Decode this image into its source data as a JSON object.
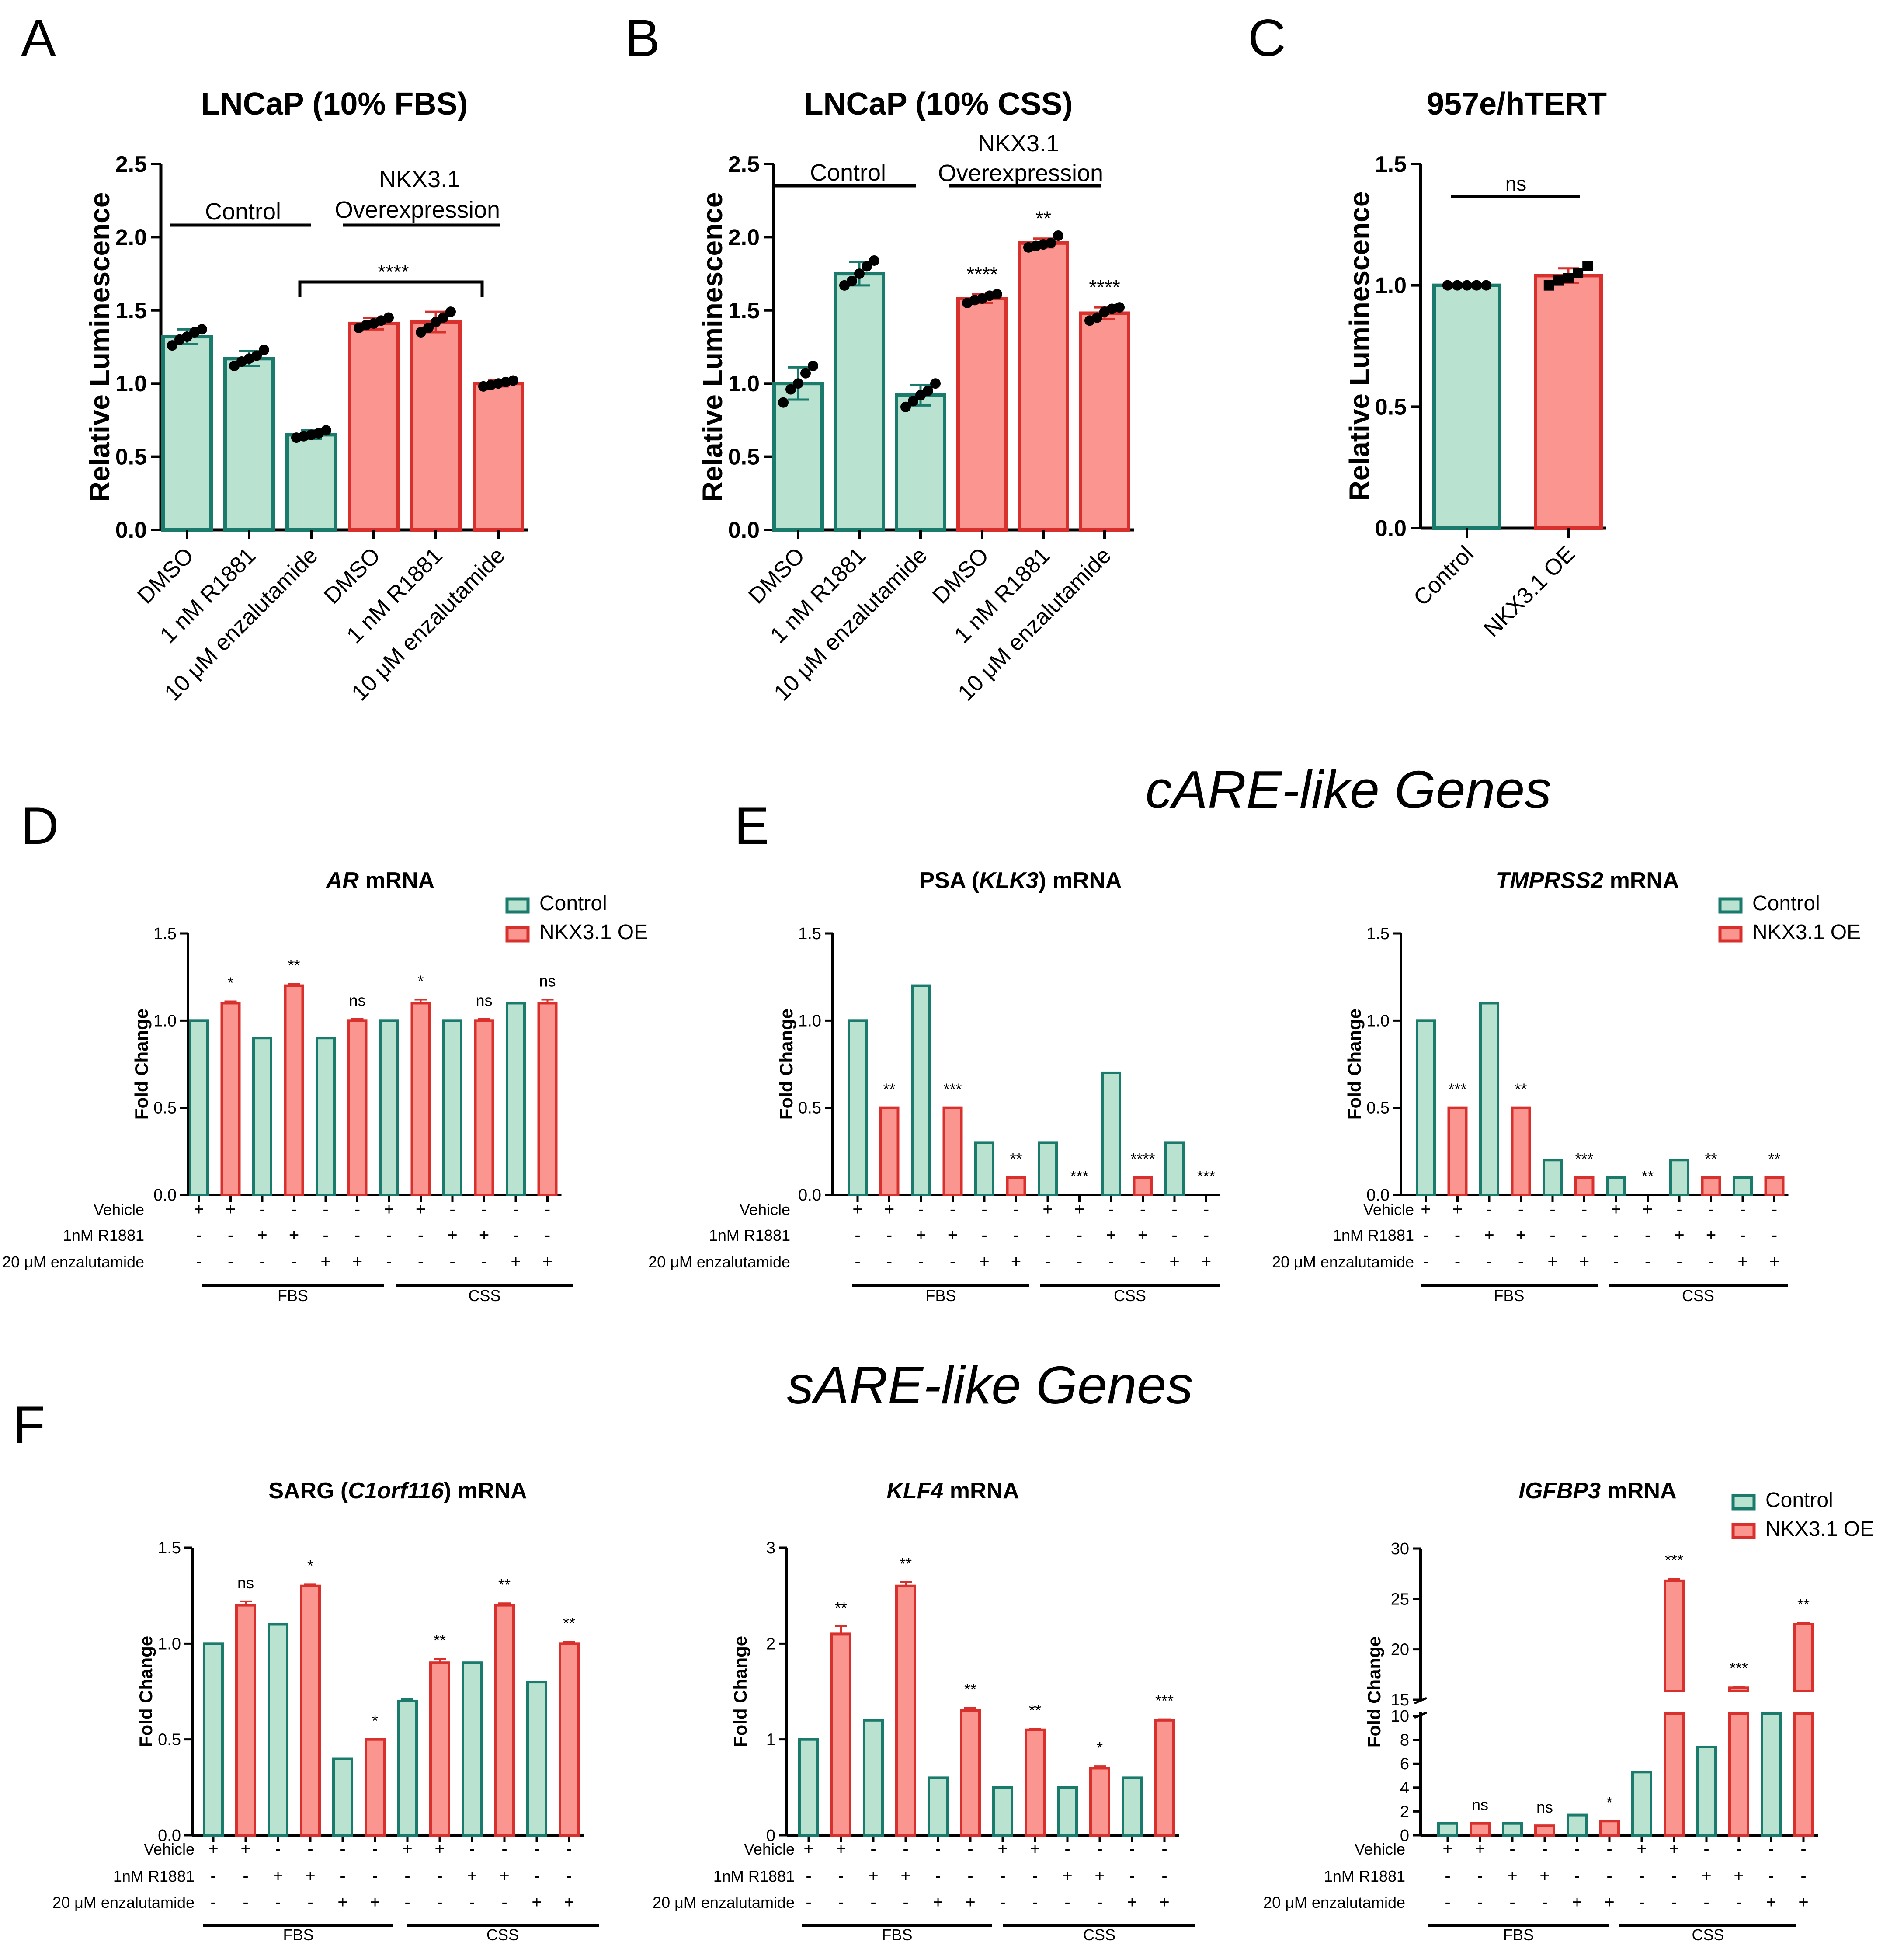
{
  "colors": {
    "control_fill": "#b9e3d0",
    "control_edge": "#1a7a6b",
    "nkx_fill": "#fa958f",
    "nkx_edge": "#d8302c"
  },
  "sections": {
    "care": "cARE-like Genes",
    "sare": "sARE-like Genes"
  },
  "legend": {
    "control": "Control",
    "nkx": "NKX3.1 OE"
  },
  "condition_rows": {
    "vehicle": "Vehicle",
    "r1881": "1nM R1881",
    "enza": "20 μM enzalutamide",
    "vehicle_marks": [
      "+",
      "+",
      "-",
      "-",
      "-",
      "-",
      "+",
      "+",
      "-",
      "-",
      "-",
      "-"
    ],
    "r1881_marks": [
      "-",
      "-",
      "+",
      "+",
      "-",
      "-",
      "-",
      "-",
      "+",
      "+",
      "-",
      "-"
    ],
    "enza_marks": [
      "-",
      "-",
      "-",
      "-",
      "+",
      "+",
      "-",
      "-",
      "-",
      "-",
      "+",
      "+"
    ],
    "group_fbs": "FBS",
    "group_css": "CSS"
  },
  "chart_data": [
    {
      "id": "A",
      "letter": "A",
      "type": "bar",
      "title": "LNCaP (10% FBS)",
      "ylabel": "Relative Luminescence",
      "ylim": [
        0,
        2.5
      ],
      "yticks": [
        "0.0",
        "0.5",
        "1.0",
        "1.5",
        "2.0",
        "2.5"
      ],
      "categories": [
        "DMSO",
        "1 nM R1881",
        "10 μM enzalutamide",
        "DMSO",
        "1 nM R1881",
        "10 μM enzalutamide"
      ],
      "groups": [
        "Control",
        "Control",
        "Control",
        "NKX3.1",
        "NKX3.1",
        "NKX3.1"
      ],
      "values": [
        1.32,
        1.17,
        0.65,
        1.41,
        1.42,
        1.0
      ],
      "errors": [
        0.05,
        0.05,
        0.03,
        0.04,
        0.07,
        0.02
      ],
      "points": [
        [
          1.26,
          1.3,
          1.32,
          1.35,
          1.37
        ],
        [
          1.12,
          1.15,
          1.17,
          1.19,
          1.23
        ],
        [
          0.63,
          0.64,
          0.65,
          0.66,
          0.68
        ],
        [
          1.38,
          1.4,
          1.41,
          1.43,
          1.45
        ],
        [
          1.35,
          1.38,
          1.42,
          1.45,
          1.49
        ],
        [
          0.98,
          0.99,
          1.0,
          1.01,
          1.02
        ]
      ],
      "group_labels": {
        "control": "Control",
        "nkx_line1": "NKX3.1",
        "nkx_line2": "Overexpression"
      },
      "bracket_label": "****",
      "bar_sigs": [
        "",
        "",
        "",
        "",
        "",
        ""
      ]
    },
    {
      "id": "B",
      "letter": "B",
      "type": "bar",
      "title": "LNCaP (10% CSS)",
      "ylabel": "Relative Luminescence",
      "ylim": [
        0,
        2.5
      ],
      "yticks": [
        "0.0",
        "0.5",
        "1.0",
        "1.5",
        "2.0",
        "2.5"
      ],
      "categories": [
        "DMSO",
        "1 nM R1881",
        "10 μM enzalutamide",
        "DMSO",
        "1 nM R1881",
        "10 μM enzalutamide"
      ],
      "groups": [
        "Control",
        "Control",
        "Control",
        "NKX3.1",
        "NKX3.1",
        "NKX3.1"
      ],
      "values": [
        1.0,
        1.75,
        0.92,
        1.58,
        1.96,
        1.48
      ],
      "errors": [
        0.11,
        0.08,
        0.07,
        0.03,
        0.03,
        0.04
      ],
      "points": [
        [
          0.87,
          0.96,
          1.0,
          1.07,
          1.12
        ],
        [
          1.67,
          1.7,
          1.75,
          1.8,
          1.84
        ],
        [
          0.84,
          0.88,
          0.92,
          0.95,
          1.0
        ],
        [
          1.55,
          1.57,
          1.58,
          1.6,
          1.61
        ],
        [
          1.93,
          1.94,
          1.95,
          1.96,
          2.01
        ],
        [
          1.43,
          1.45,
          1.49,
          1.51,
          1.52
        ]
      ],
      "group_labels": {
        "control": "Control",
        "nkx_line1": "NKX3.1",
        "nkx_line2": "Overexpression"
      },
      "bar_sigs": [
        "",
        "",
        "",
        "****",
        "**",
        "****"
      ]
    },
    {
      "id": "C",
      "letter": "C",
      "type": "bar",
      "title": "957e/hTERT",
      "ylabel": "Relative Luminescence",
      "ylim": [
        0,
        1.5
      ],
      "yticks": [
        "0.0",
        "0.5",
        "1.0",
        "1.5"
      ],
      "categories": [
        "Control",
        "NKX3.1 OE"
      ],
      "groups": [
        "Control",
        "NKX3.1"
      ],
      "values": [
        1.0,
        1.04
      ],
      "errors": [
        0.0,
        0.03
      ],
      "points": [
        [
          1.0,
          1.0,
          1.0,
          1.0,
          1.0
        ],
        [
          1.0,
          1.02,
          1.03,
          1.05,
          1.08
        ]
      ],
      "bracket_label": "ns"
    },
    {
      "id": "D",
      "letter": "D",
      "type": "bar",
      "title_parts": [
        [
          "AR",
          true
        ],
        [
          " mRNA",
          false
        ]
      ],
      "ylabel": "Fold Change",
      "ylim": [
        0,
        1.5
      ],
      "yticks": [
        "0.0",
        "0.5",
        "1.0",
        "1.5"
      ],
      "groups": [
        "Control",
        "NKX3.1",
        "Control",
        "NKX3.1",
        "Control",
        "NKX3.1",
        "Control",
        "NKX3.1",
        "Control",
        "NKX3.1",
        "Control",
        "NKX3.1"
      ],
      "values": [
        1.0,
        1.1,
        0.9,
        1.2,
        0.9,
        1.0,
        1.0,
        1.1,
        1.0,
        1.0,
        1.1,
        1.1
      ],
      "errors": [
        0.0,
        0.01,
        0.0,
        0.01,
        0.0,
        0.01,
        0.0,
        0.02,
        0.0,
        0.01,
        0.0,
        0.02
      ],
      "sigs": [
        "",
        "*",
        "",
        "**",
        "",
        "ns",
        "",
        "*",
        "",
        "ns",
        "",
        "ns"
      ]
    },
    {
      "id": "E1",
      "letter": "E",
      "type": "bar",
      "title_parts": [
        [
          "PSA (",
          false
        ],
        [
          "KLK3",
          true
        ],
        [
          ") mRNA",
          false
        ]
      ],
      "ylabel": "Fold Change",
      "ylim": [
        0,
        1.5
      ],
      "yticks": [
        "0.0",
        "0.5",
        "1.0",
        "1.5"
      ],
      "groups": [
        "Control",
        "NKX3.1",
        "Control",
        "NKX3.1",
        "Control",
        "NKX3.1",
        "Control",
        "NKX3.1",
        "Control",
        "NKX3.1",
        "Control",
        "NKX3.1"
      ],
      "values": [
        1.0,
        0.5,
        1.2,
        0.5,
        0.3,
        0.1,
        0.3,
        0.0,
        0.7,
        0.1,
        0.3,
        0.0
      ],
      "errors": [
        0.0,
        0.0,
        0.0,
        0.0,
        0.0,
        0.0,
        0.0,
        0.0,
        0.0,
        0.0,
        0.0,
        0.0
      ],
      "sigs": [
        "",
        "**",
        "",
        "***",
        "",
        "**",
        "",
        "***",
        "",
        "****",
        "",
        "***"
      ]
    },
    {
      "id": "E2",
      "letter": "",
      "type": "bar",
      "title_parts": [
        [
          "TMPRSS2",
          true
        ],
        [
          " mRNA",
          false
        ]
      ],
      "ylabel": "Fold Change",
      "ylim": [
        0,
        1.5
      ],
      "yticks": [
        "0.0",
        "0.5",
        "1.0",
        "1.5"
      ],
      "groups": [
        "Control",
        "NKX3.1",
        "Control",
        "NKX3.1",
        "Control",
        "NKX3.1",
        "Control",
        "NKX3.1",
        "Control",
        "NKX3.1",
        "Control",
        "NKX3.1"
      ],
      "values": [
        1.0,
        0.5,
        1.1,
        0.5,
        0.2,
        0.1,
        0.1,
        0.0,
        0.2,
        0.1,
        0.1,
        0.1
      ],
      "errors": [
        0.0,
        0.0,
        0.0,
        0.0,
        0.0,
        0.0,
        0.0,
        0.0,
        0.0,
        0.0,
        0.0,
        0.0
      ],
      "sigs": [
        "",
        "***",
        "",
        "**",
        "",
        "***",
        "",
        "**",
        "",
        "**",
        "",
        "**"
      ]
    },
    {
      "id": "F1",
      "letter": "F",
      "type": "bar",
      "title_parts": [
        [
          "SARG (",
          false
        ],
        [
          "C1orf116",
          true
        ],
        [
          ") mRNA",
          false
        ]
      ],
      "ylabel": "Fold Change",
      "ylim": [
        0,
        1.5
      ],
      "yticks": [
        "0.0",
        "0.5",
        "1.0",
        "1.5"
      ],
      "groups": [
        "Control",
        "NKX3.1",
        "Control",
        "NKX3.1",
        "Control",
        "NKX3.1",
        "Control",
        "NKX3.1",
        "Control",
        "NKX3.1",
        "Control",
        "NKX3.1"
      ],
      "values": [
        1.0,
        1.2,
        1.1,
        1.3,
        0.4,
        0.5,
        0.7,
        0.9,
        0.9,
        1.2,
        0.8,
        1.0
      ],
      "errors": [
        0.0,
        0.02,
        0.0,
        0.01,
        0.0,
        0.0,
        0.01,
        0.02,
        0.0,
        0.01,
        0.0,
        0.01
      ],
      "sigs": [
        "",
        "ns",
        "",
        "*",
        "",
        "*",
        "",
        "**",
        "",
        "**",
        "",
        "**"
      ]
    },
    {
      "id": "F2",
      "letter": "",
      "type": "bar",
      "title_parts": [
        [
          "KLF4",
          true
        ],
        [
          " mRNA",
          false
        ]
      ],
      "ylabel": "Fold Change",
      "ylim": [
        0,
        3
      ],
      "yticks": [
        "0",
        "1",
        "2",
        "3"
      ],
      "groups": [
        "Control",
        "NKX3.1",
        "Control",
        "NKX3.1",
        "Control",
        "NKX3.1",
        "Control",
        "NKX3.1",
        "Control",
        "NKX3.1",
        "Control",
        "NKX3.1"
      ],
      "values": [
        1.0,
        2.1,
        1.2,
        2.6,
        0.6,
        1.3,
        0.5,
        1.1,
        0.5,
        0.7,
        0.6,
        1.2
      ],
      "errors": [
        0.0,
        0.08,
        0.0,
        0.04,
        0.0,
        0.03,
        0.0,
        0.01,
        0.0,
        0.02,
        0.0,
        0.01
      ],
      "sigs": [
        "",
        "**",
        "",
        "**",
        "",
        "**",
        "",
        "**",
        "",
        "*",
        "",
        "***"
      ]
    },
    {
      "id": "F3",
      "letter": "",
      "type": "bar",
      "title_parts": [
        [
          "IGFBP3",
          true
        ],
        [
          " mRNA",
          false
        ]
      ],
      "ylabel": "Fold Change",
      "ylim": [
        0,
        30
      ],
      "axis_break": [
        10,
        15
      ],
      "yticks_lower": [
        "0",
        "2",
        "4",
        "6",
        "8",
        "10"
      ],
      "yticks_upper": [
        "15",
        "20",
        "25",
        "30"
      ],
      "groups": [
        "Control",
        "NKX3.1",
        "Control",
        "NKX3.1",
        "Control",
        "NKX3.1",
        "Control",
        "NKX3.1",
        "Control",
        "NKX3.1",
        "Control",
        "NKX3.1"
      ],
      "values": [
        1.0,
        1.0,
        1.0,
        0.8,
        1.7,
        1.2,
        5.3,
        26.8,
        7.4,
        16.2,
        10.2,
        22.5
      ],
      "errors": [
        0.0,
        0.0,
        0.0,
        0.0,
        0.0,
        0.0,
        0.0,
        0.2,
        0.0,
        0.1,
        0.0,
        0.1
      ],
      "sigs": [
        "",
        "ns",
        "",
        "ns",
        "",
        "*",
        "",
        "***",
        "",
        "***",
        "",
        "**"
      ]
    }
  ]
}
